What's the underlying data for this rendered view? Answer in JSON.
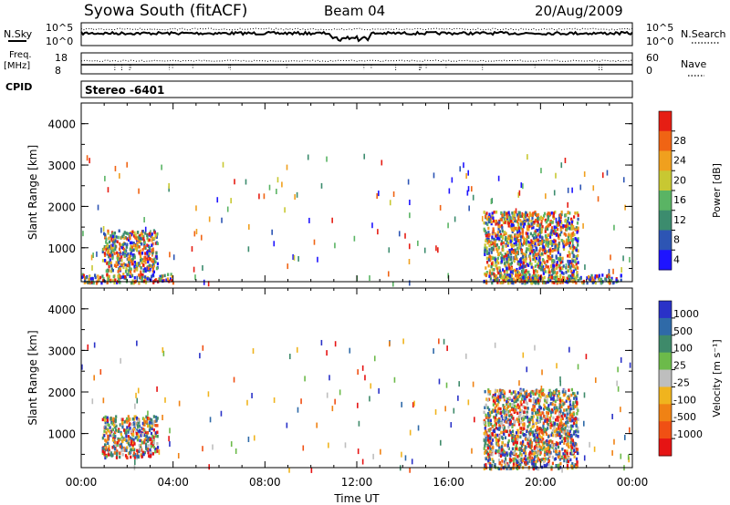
{
  "header": {
    "station": "Syowa South (fitACF)",
    "beam": "Beam 04",
    "date": "20/Aug/2009"
  },
  "panels": {
    "nsky": {
      "label": "N.Sky",
      "ticks": [
        "10^5",
        "10^0"
      ],
      "right_label": "N.Search",
      "right_ticks": [
        "10^5",
        "10^0"
      ]
    },
    "freq": {
      "label_1": "Freq.",
      "label_2": "[MHz]",
      "left_ticks": [
        "18",
        "8"
      ],
      "right_label": "Nave",
      "right_ticks": [
        "60",
        "0"
      ],
      "cpid_label": "CPID"
    },
    "mode": {
      "text": "Stereo -6401"
    }
  },
  "colors": {
    "power_scale": [
      "#1e14ff",
      "#2d55b4",
      "#3c8c6e",
      "#5ab464",
      "#c8c832",
      "#f0a01e",
      "#f06414",
      "#e61e14"
    ],
    "velocity_scale": [
      "#2a32c8",
      "#2f6aa8",
      "#3e8a6a",
      "#6cba4a",
      "#bebebe",
      "#f0b41e",
      "#f08214",
      "#f05014",
      "#e61414"
    ]
  },
  "chart_data": [
    {
      "type": "heatmap",
      "name_hint": "power",
      "title": "",
      "xlabel": "Time UT",
      "ylabel": "Slant Range [km]",
      "xlim": [
        0,
        24
      ],
      "ylim": [
        180,
        4500
      ],
      "x_ticks": [
        "00:00",
        "04:00",
        "08:00",
        "12:00",
        "16:00",
        "20:00",
        "00:00"
      ],
      "y_ticks": [
        "1000",
        "2000",
        "3000",
        "4000"
      ],
      "colorbar_label": "Power [dB]",
      "colorbar_ticks": [
        "4",
        "8",
        "12",
        "16",
        "20",
        "24",
        "28"
      ],
      "regions": [
        {
          "t_start": 0.9,
          "t_end": 3.3,
          "r_start": 450,
          "r_end": 1450,
          "min": 4,
          "max": 20
        },
        {
          "t_start": 0.0,
          "t_end": 4.0,
          "r_start": 180,
          "r_end": 400,
          "min": 8,
          "max": 30
        },
        {
          "t_start": 17.5,
          "t_end": 21.6,
          "r_start": 180,
          "r_end": 1900,
          "min": 4,
          "max": 20
        },
        {
          "t_start": 18.2,
          "t_end": 23.5,
          "r_start": 180,
          "r_end": 380,
          "min": 8,
          "max": 28
        }
      ]
    },
    {
      "type": "heatmap",
      "name_hint": "velocity",
      "title": "",
      "xlabel": "Time UT",
      "ylabel": "Slant Range [km]",
      "xlim": [
        0,
        24
      ],
      "ylim": [
        180,
        4500
      ],
      "x_ticks": [
        "00:00",
        "04:00",
        "08:00",
        "12:00",
        "16:00",
        "20:00",
        "00:00"
      ],
      "y_ticks": [
        "1000",
        "2000",
        "3000",
        "4000"
      ],
      "colorbar_label": "Velocity [m s⁻¹]",
      "colorbar_ticks": [
        "1000",
        "500",
        "100",
        "25",
        "-25",
        "-100",
        "-500",
        "-1000"
      ],
      "regions": [
        {
          "t_start": 0.9,
          "t_end": 3.3,
          "r_start": 450,
          "r_end": 1450,
          "min": -100,
          "max": 500
        },
        {
          "t_start": 17.5,
          "t_end": 21.6,
          "r_start": 180,
          "r_end": 2100,
          "min": -500,
          "max": 100
        }
      ]
    }
  ]
}
